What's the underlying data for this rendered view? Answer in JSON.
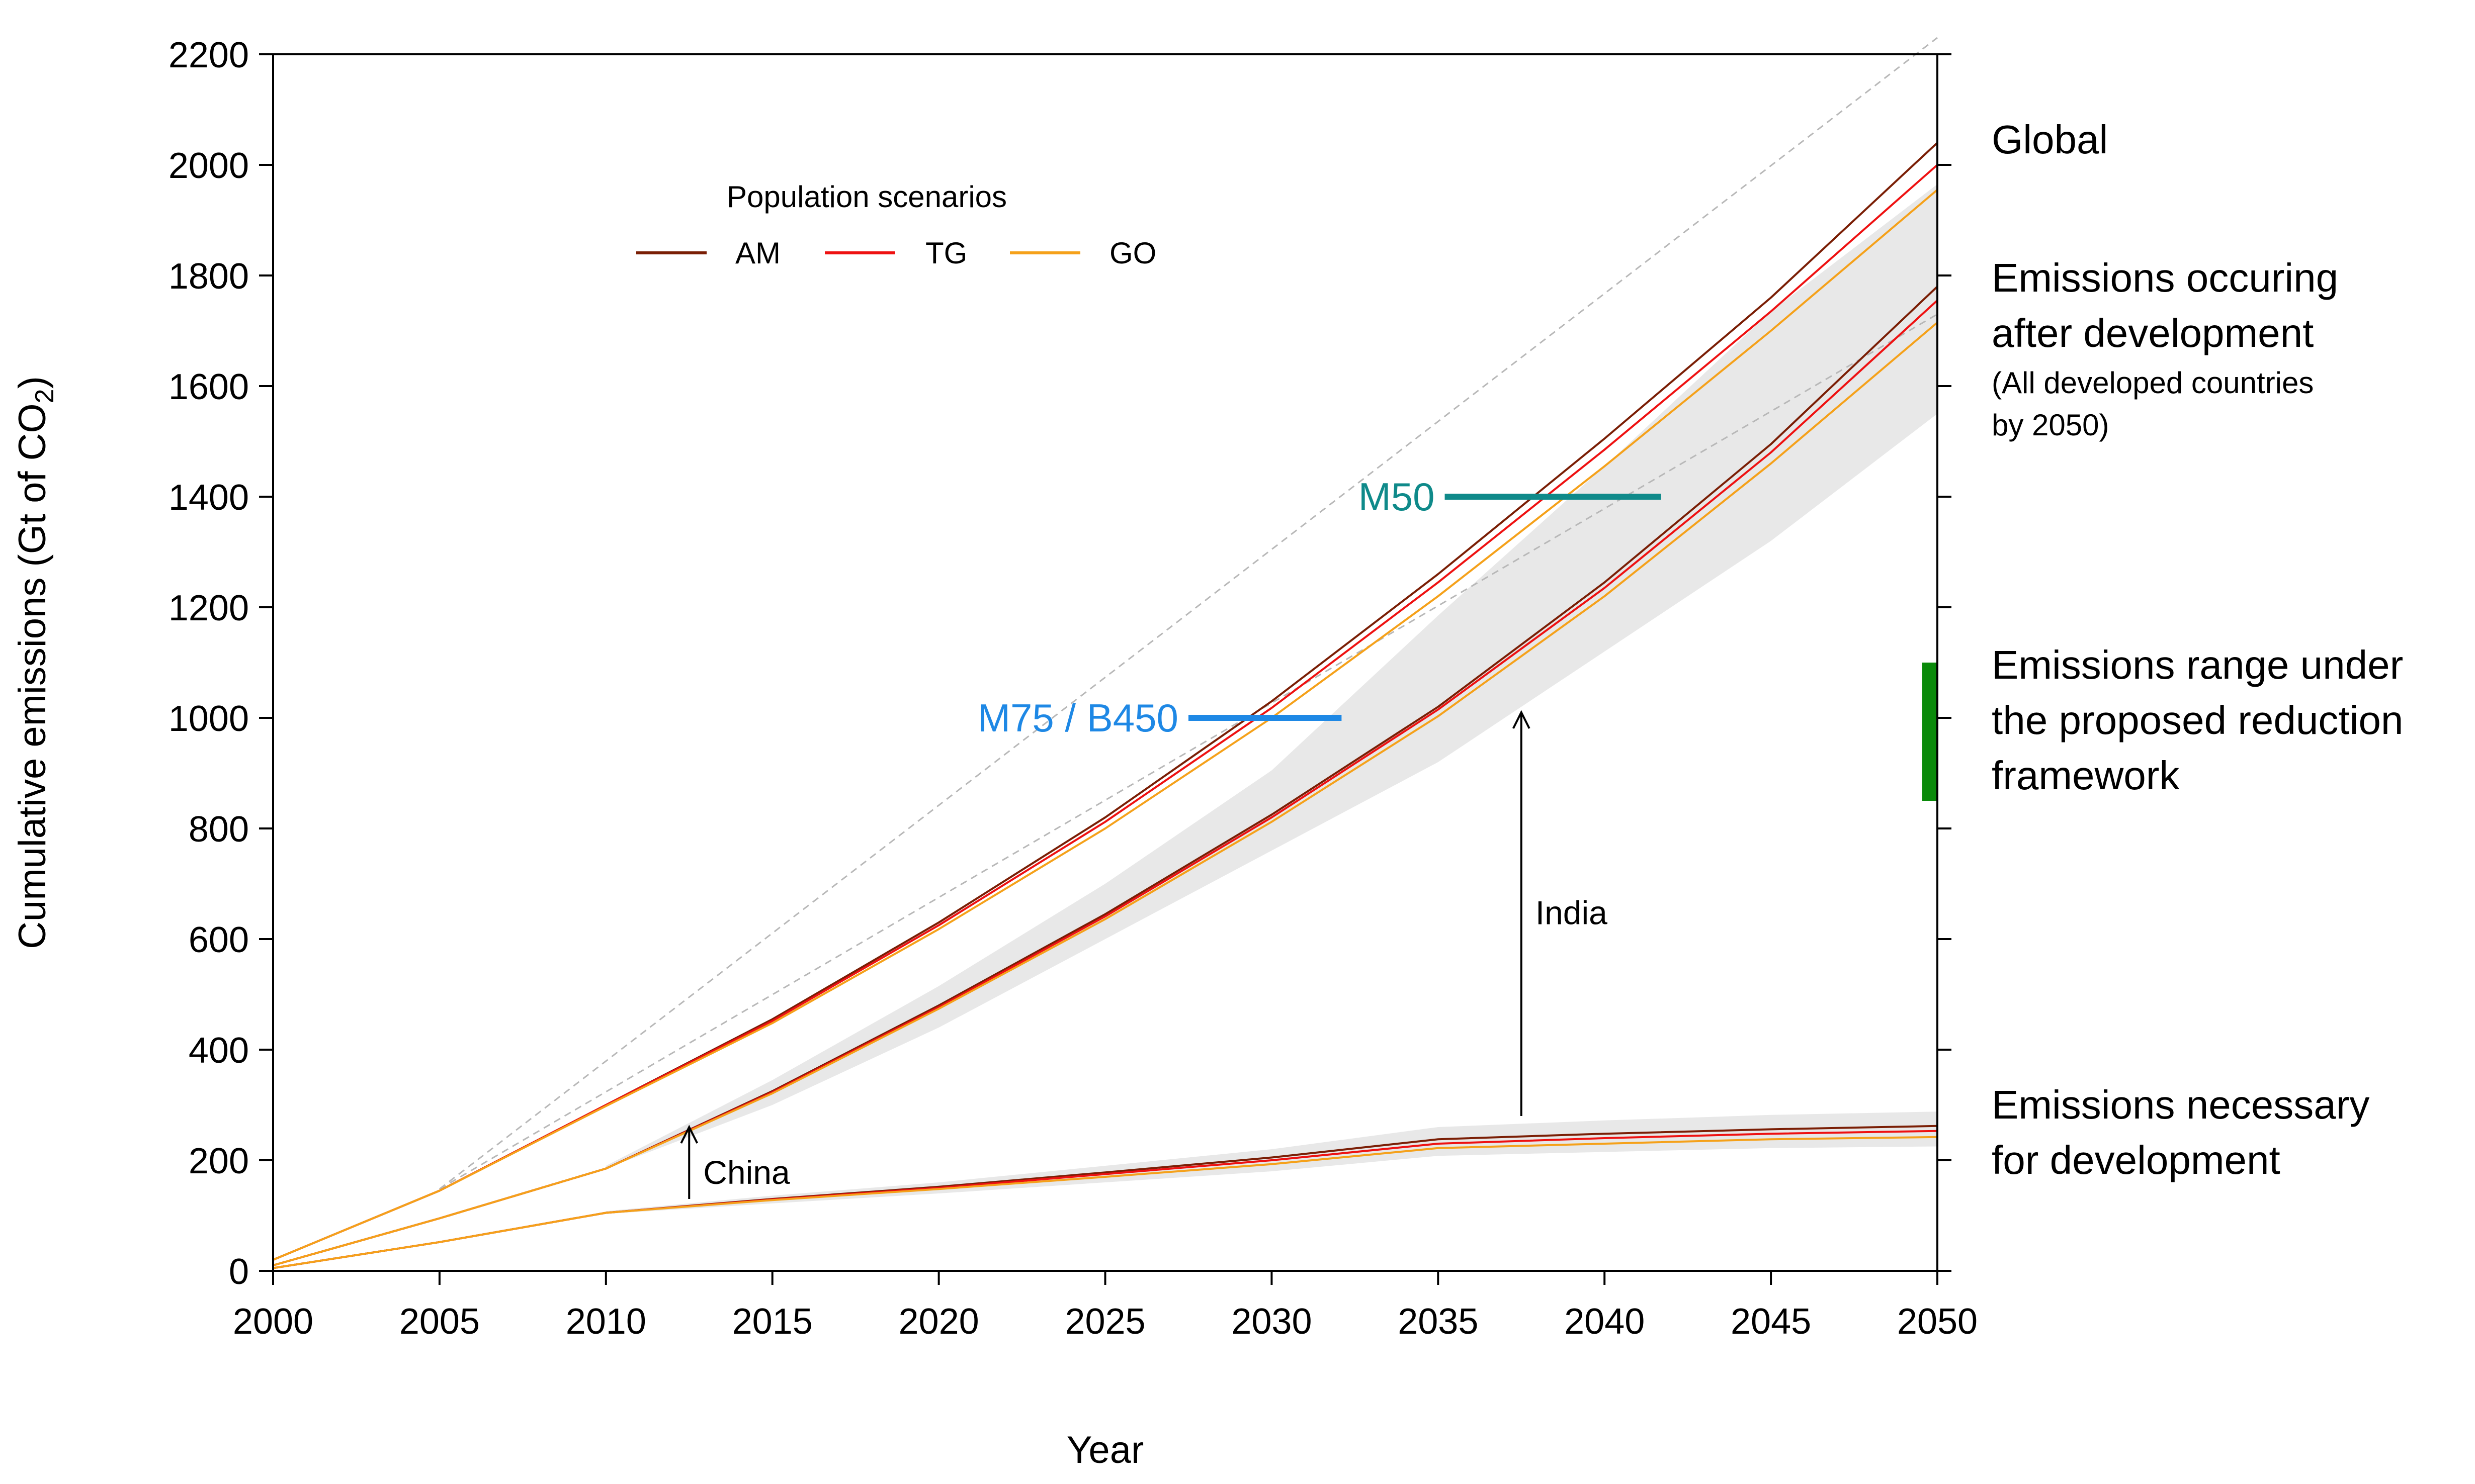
{
  "chart_data": {
    "type": "line",
    "title": "",
    "xlabel": "Year",
    "ylabel_main": "Cumulative emissions (Gt of CO",
    "ylabel_sub": "2",
    "ylabel_tail": ")",
    "xlim": [
      2000,
      2050
    ],
    "ylim": [
      0,
      2200
    ],
    "x_ticks": [
      2000,
      2005,
      2010,
      2015,
      2020,
      2025,
      2030,
      2035,
      2040,
      2045,
      2050
    ],
    "y_ticks": [
      0,
      200,
      400,
      600,
      800,
      1000,
      1200,
      1400,
      1600,
      1800,
      2000,
      2200
    ],
    "x": [
      2000,
      2005,
      2010,
      2015,
      2020,
      2025,
      2030,
      2035,
      2040,
      2045,
      2050
    ],
    "legend": {
      "title": "Population scenarios",
      "entries": [
        {
          "name": "AM",
          "color": "#7a1e05"
        },
        {
          "name": "TG",
          "color": "#ee1111"
        },
        {
          "name": "GO",
          "color": "#f5a11a"
        }
      ]
    },
    "series": [
      {
        "name": "Global AM",
        "color": "#7a1e05",
        "values": [
          20,
          145,
          300,
          455,
          630,
          820,
          1030,
          1260,
          1505,
          1760,
          2040
        ]
      },
      {
        "name": "Global TG",
        "color": "#ee1111",
        "values": [
          20,
          145,
          300,
          452,
          625,
          812,
          1018,
          1245,
          1485,
          1735,
          2000
        ]
      },
      {
        "name": "Global GO",
        "color": "#f5a11a",
        "values": [
          20,
          145,
          298,
          448,
          618,
          800,
          1000,
          1220,
          1455,
          1700,
          1955
        ]
      },
      {
        "name": "After development AM",
        "color": "#7a1e05",
        "values": [
          10,
          95,
          185,
          325,
          480,
          645,
          825,
          1020,
          1245,
          1495,
          1780
        ]
      },
      {
        "name": "After development TG",
        "color": "#ee1111",
        "values": [
          10,
          95,
          185,
          323,
          477,
          641,
          820,
          1015,
          1235,
          1480,
          1755
        ]
      },
      {
        "name": "After development GO",
        "color": "#f5a11a",
        "values": [
          10,
          95,
          185,
          321,
          474,
          636,
          812,
          1003,
          1220,
          1460,
          1715
        ]
      },
      {
        "name": "Necessary AM",
        "color": "#7a1e05",
        "values": [
          5,
          52,
          105,
          130,
          152,
          178,
          205,
          238,
          248,
          256,
          262
        ]
      },
      {
        "name": "Necessary TG",
        "color": "#ee1111",
        "values": [
          5,
          52,
          105,
          129,
          150,
          175,
          200,
          230,
          240,
          248,
          253
        ]
      },
      {
        "name": "Necessary GO",
        "color": "#f5a11a",
        "values": [
          5,
          52,
          105,
          128,
          148,
          170,
          193,
          222,
          230,
          238,
          242
        ]
      }
    ],
    "reference_lines": [
      {
        "name": "Global upper reference",
        "color": "#b8b8b8",
        "x": [
          2005,
          2050
        ],
        "y": [
          148,
          2230
        ]
      },
      {
        "name": "After-development reference",
        "color": "#b8b8b8",
        "x": [
          2005,
          2050
        ],
        "y": [
          148,
          1730
        ]
      }
    ],
    "bands": [
      {
        "name": "After development range",
        "color": "#e8e8e8",
        "x": [
          2010,
          2015,
          2020,
          2025,
          2030,
          2035,
          2040,
          2045,
          2050
        ],
        "lower": [
          185,
          300,
          440,
          600,
          760,
          920,
          1120,
          1320,
          1550
        ],
        "upper": [
          190,
          345,
          515,
          700,
          905,
          1185,
          1455,
          1735,
          1965
        ]
      },
      {
        "name": "Necessary range",
        "color": "#e8e8e8",
        "x": [
          2010,
          2015,
          2020,
          2025,
          2030,
          2035,
          2040,
          2045,
          2050
        ],
        "lower": [
          103,
          122,
          140,
          160,
          180,
          208,
          215,
          222,
          225
        ],
        "upper": [
          108,
          136,
          160,
          190,
          220,
          260,
          272,
          282,
          288
        ]
      }
    ],
    "targets": [
      {
        "label": "M50",
        "color": "#0f8a8a",
        "value": 1400,
        "x_start": 2035.2,
        "x_end": 2041.7
      },
      {
        "label": "M75 / B450",
        "color": "#1e88e5",
        "value": 1000,
        "x_start": 2027.5,
        "x_end": 2032.1
      }
    ],
    "range_bar": {
      "color": "#0a8a0a",
      "min": 850,
      "max": 1100
    },
    "annotations": [
      {
        "label": "China",
        "arrow_x": 2012.5,
        "arrow_from": 130,
        "arrow_to": 260
      },
      {
        "label": "India",
        "arrow_x": 2037.5,
        "arrow_from": 280,
        "arrow_to": 1010
      }
    ],
    "right_labels": {
      "global": "Global",
      "after_line1": "Emissions occuring",
      "after_line2": "after development",
      "after_note1": "(All developed countries",
      "after_note2": "by 2050)",
      "range_line1": "Emissions range under",
      "range_line2": "the proposed reduction",
      "range_line3": "framework",
      "necessary_line1": "Emissions necessary",
      "necessary_line2": "for development"
    }
  }
}
